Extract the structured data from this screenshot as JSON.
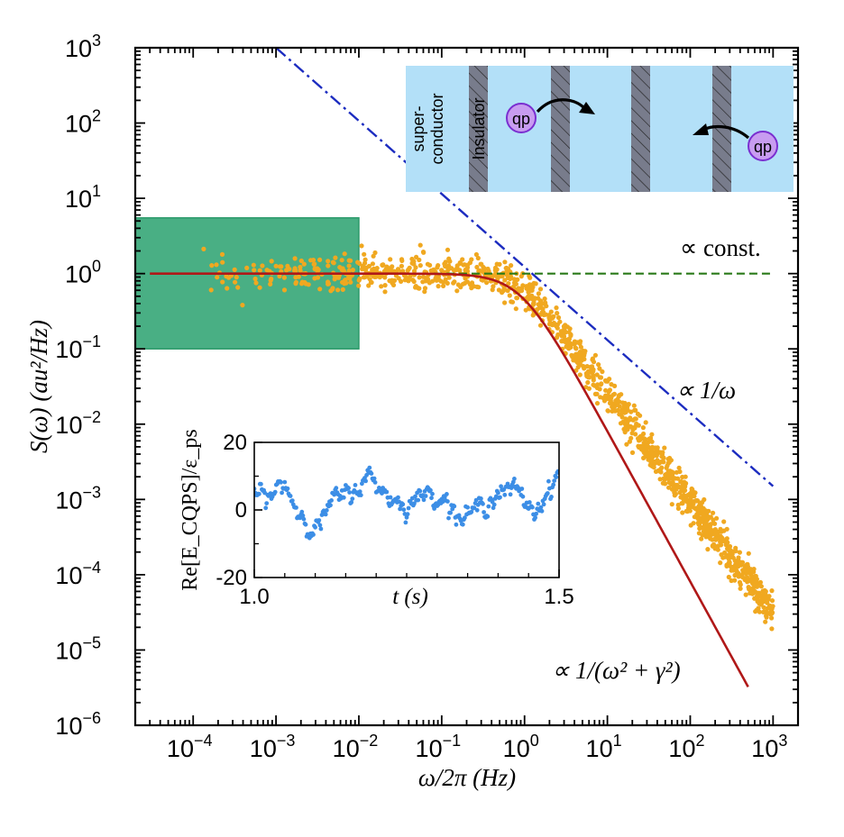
{
  "chart_data": [
    {
      "type": "line",
      "scale": "log-log",
      "xlabel": "ω/2π  (Hz)",
      "ylabel": "S(ω)  (au²/Hz)",
      "xlim": [
        2e-05,
        2000
      ],
      "ylim": [
        1e-06,
        1000
      ],
      "x_tick_exponents": [
        -4,
        -3,
        -2,
        -1,
        0,
        1,
        2,
        3
      ],
      "y_tick_exponents": [
        -6,
        -5,
        -4,
        -3,
        -2,
        -1,
        0,
        1,
        2,
        3
      ],
      "tick_base": "10",
      "shaded_region": {
        "x": [
          2e-05,
          0.01
        ],
        "y": [
          0.1,
          5.5
        ],
        "color": "#3aa87a"
      },
      "series": [
        {
          "name": "Lorentzian",
          "label": "∝ 1/(ω² + γ²)",
          "style": "solid",
          "color": "#b01818",
          "function": "lorentzian",
          "amplitude": 1.0,
          "corner_frequency": 0.9,
          "x_range": [
            3e-05,
            500
          ]
        },
        {
          "name": "constant",
          "label": "∝ const.",
          "style": "dashed",
          "color": "#2a7a18",
          "x": [
            0.08,
            1000
          ],
          "y": [
            1.0,
            1.0
          ]
        },
        {
          "name": "one_over_f",
          "label": "∝ 1/ω",
          "style": "dash-dot",
          "color": "#1c2cc0",
          "x": [
            0.001,
            1000
          ],
          "y": [
            1000,
            0.0015
          ]
        },
        {
          "name": "measured spectrum",
          "style": "scatter",
          "color": "#f0a820",
          "x_range": [
            0.0001,
            1000
          ],
          "low_freq_level": 1.0,
          "corner_frequency": 0.8,
          "high_freq_slope": -1.45,
          "scatter_decades": 0.12
        }
      ]
    },
    {
      "type": "line",
      "name": "inset time trace",
      "xlabel": "t (s)",
      "ylabel": "Re[E_CQPS]/ε_ps",
      "xlim": [
        1.0,
        1.5
      ],
      "ylim": [
        -20,
        20
      ],
      "x_ticks": [
        "1.0",
        "1.5"
      ],
      "y_ticks": [
        "20",
        "0",
        "-20"
      ],
      "x_tick_values": [
        1.0,
        1.5
      ],
      "y_tick_values": [
        20,
        0,
        -20
      ],
      "color": "#3c8ee6",
      "anchors": {
        "t": [
          1.0,
          1.02,
          1.05,
          1.07,
          1.1,
          1.13,
          1.16,
          1.19,
          1.22,
          1.25,
          1.28,
          1.31,
          1.34,
          1.37,
          1.4,
          1.43,
          1.46,
          1.48,
          1.5
        ],
        "v": [
          6,
          3,
          8,
          0,
          -6,
          3,
          5,
          10,
          4,
          1,
          5,
          4,
          -3,
          1,
          5,
          6,
          -1,
          5,
          11
        ]
      }
    }
  ],
  "schematic": {
    "superconductor_label_line1": "super-",
    "superconductor_label_line2": "conductor",
    "insulator_label": "Insulator",
    "particle_label_left": "qp",
    "particle_label_right": "qp",
    "background_color": "#b3e0f8",
    "barrier_color": "#787c8c",
    "particle_color": "#c89cf0",
    "particle_edge_color": "#7a2fd0"
  }
}
